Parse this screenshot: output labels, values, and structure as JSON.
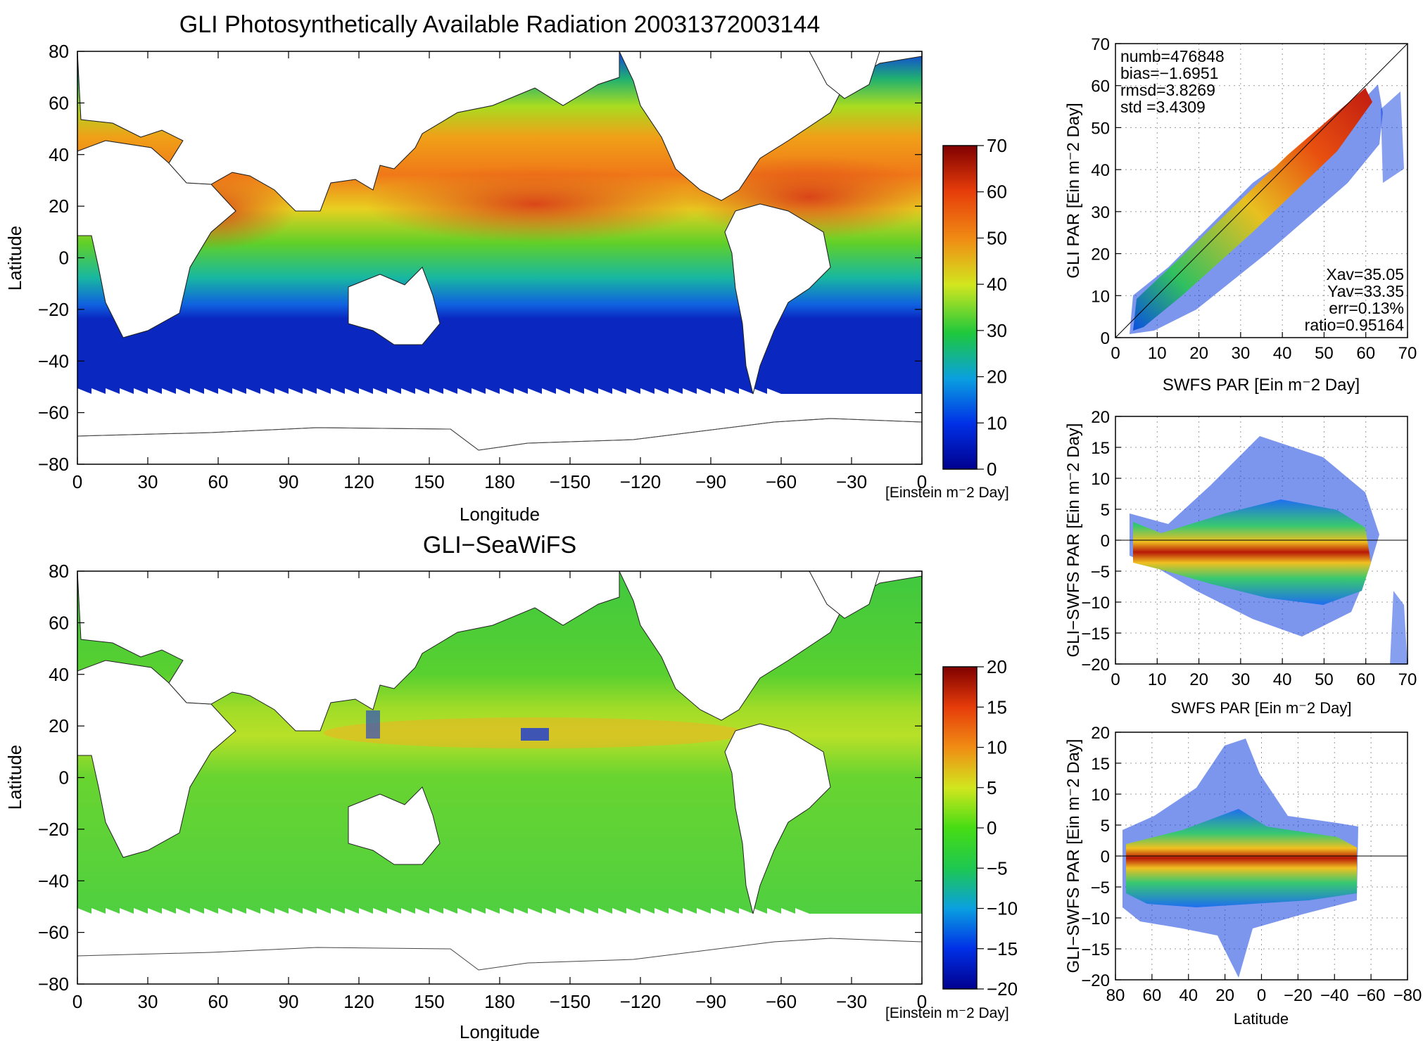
{
  "maps": {
    "top": {
      "title": "GLI Photosynthetically Available Radiation 20031372003144",
      "xlabel": "Longitude",
      "ylabel": "Latitude",
      "lon_ticks": [
        "0",
        "30",
        "60",
        "90",
        "120",
        "150",
        "180",
        "−150",
        "−120",
        "−90",
        "−60",
        "−30",
        "0"
      ],
      "lat_ticks": [
        "80",
        "60",
        "40",
        "20",
        "0",
        "−20",
        "−40",
        "−60",
        "−80"
      ],
      "colorbar": {
        "ticks": [
          "70",
          "60",
          "50",
          "40",
          "30",
          "20",
          "10",
          "0"
        ],
        "range": [
          0,
          70
        ],
        "unit_label": "[Einstein m⁻2 Day]"
      }
    },
    "bottom": {
      "title": "GLI−SeaWiFS",
      "xlabel": "Longitude",
      "ylabel": "Latitude",
      "lon_ticks": [
        "0",
        "30",
        "60",
        "90",
        "120",
        "150",
        "180",
        "−150",
        "−120",
        "−90",
        "−60",
        "−30",
        "0"
      ],
      "lat_ticks": [
        "80",
        "60",
        "40",
        "20",
        "0",
        "−20",
        "−40",
        "−60",
        "−80"
      ],
      "colorbar": {
        "ticks": [
          "20",
          "15",
          "10",
          "5",
          "0",
          "−5",
          "−10",
          "−15",
          "−20"
        ],
        "range": [
          -20,
          20
        ],
        "unit_label": "[Einstein m⁻2 Day]"
      }
    }
  },
  "scatter1": {
    "xlabel": "SWFS PAR [Ein m⁻2 Day]",
    "ylabel": "GLI PAR [Ein m⁻2 Day]",
    "xticks": [
      "0",
      "10",
      "20",
      "30",
      "40",
      "50",
      "60",
      "70"
    ],
    "yticks": [
      "70",
      "60",
      "50",
      "40",
      "30",
      "20",
      "10",
      "0"
    ],
    "stats_left": [
      "numb=476848",
      "bias=−1.6951",
      "rmsd=3.8269",
      "std =3.4309"
    ],
    "stats_right": [
      "Xav=35.05",
      "Yav=33.35",
      "err=0.13%",
      "ratio=0.95164"
    ]
  },
  "scatter2": {
    "xlabel": "SWFS PAR [Ein m⁻2 Day]",
    "ylabel": "GLI−SWFS PAR [Ein m⁻2 Day]",
    "xticks": [
      "0",
      "10",
      "20",
      "30",
      "40",
      "50",
      "60",
      "70"
    ],
    "yticks": [
      "20",
      "15",
      "10",
      "5",
      "0",
      "−5",
      "−10",
      "−15",
      "−20"
    ]
  },
  "scatter3": {
    "xlabel": "Latitude",
    "ylabel": "GLI−SWFS PAR [Ein m⁻2 Day]",
    "xticks": [
      "80",
      "60",
      "40",
      "20",
      "0",
      "−20",
      "−40",
      "−60",
      "−80"
    ],
    "yticks": [
      "20",
      "15",
      "10",
      "5",
      "0",
      "−5",
      "−10",
      "−15",
      "−20"
    ]
  },
  "chart_data": [
    {
      "type": "heatmap",
      "title": "GLI Photosynthetically Available Radiation 20031372003144",
      "xlabel": "Longitude",
      "ylabel": "Latitude",
      "xlim": [
        0,
        360
      ],
      "ylim": [
        -80,
        80
      ],
      "colorbar_range": [
        0,
        70
      ],
      "colorbar_unit": "[Einstein m⁻2 Day]"
    },
    {
      "type": "heatmap",
      "title": "GLI−SeaWiFS",
      "xlabel": "Longitude",
      "ylabel": "Latitude",
      "xlim": [
        0,
        360
      ],
      "ylim": [
        -80,
        80
      ],
      "colorbar_range": [
        -20,
        20
      ],
      "colorbar_unit": "[Einstein m⁻2 Day]"
    },
    {
      "type": "scatter",
      "xlabel": "SWFS PAR [Ein m⁻2 Day]",
      "ylabel": "GLI PAR [Ein m⁻2 Day]",
      "xlim": [
        0,
        70
      ],
      "ylim": [
        0,
        70
      ],
      "grid": true,
      "stats": {
        "numb": 476848,
        "bias": -1.6951,
        "rmsd": 3.8269,
        "std": 3.4309,
        "Xav": 35.05,
        "Yav": 33.35,
        "err_percent": 0.13,
        "ratio": 0.95164
      }
    },
    {
      "type": "scatter",
      "xlabel": "SWFS PAR [Ein m⁻2 Day]",
      "ylabel": "GLI−SWFS PAR [Ein m⁻2 Day]",
      "xlim": [
        0,
        70
      ],
      "ylim": [
        -20,
        20
      ],
      "grid": true
    },
    {
      "type": "scatter",
      "xlabel": "Latitude",
      "ylabel": "GLI−SWFS PAR [Ein m⁻2 Day]",
      "xlim": [
        80,
        -80
      ],
      "ylim": [
        -20,
        20
      ],
      "grid": true
    }
  ]
}
